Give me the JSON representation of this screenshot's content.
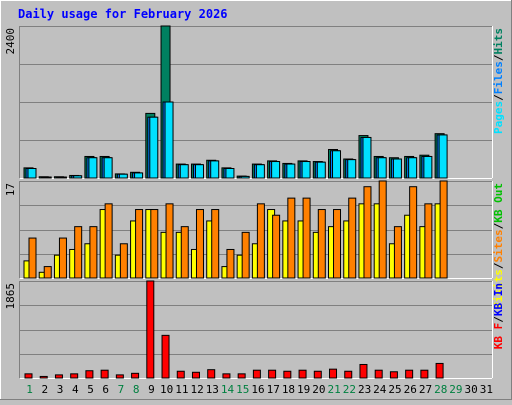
{
  "title": "Daily usage for February 2026",
  "colors": {
    "background": "#c0c0c0",
    "plot_bg": "#c0c0c0",
    "grid": "#808080",
    "pages": "#00e0ff",
    "files": "#0080ff",
    "hits": "#008060",
    "visits": "#ffff00",
    "sites": "#ff8000",
    "kbin": "#0000ff",
    "kbout": "#00c000",
    "kbf": "#ff0000",
    "weekday_label": "#000000",
    "weekend_label": "#008040"
  },
  "x_labels": [
    "1",
    "2",
    "3",
    "4",
    "5",
    "6",
    "7",
    "8",
    "9",
    "10",
    "11",
    "12",
    "13",
    "14",
    "15",
    "16",
    "17",
    "18",
    "19",
    "20",
    "21",
    "22",
    "23",
    "24",
    "25",
    "26",
    "27",
    "28",
    "29",
    "30",
    "31"
  ],
  "weekend_days": [
    1,
    7,
    8,
    14,
    15,
    21,
    22,
    28,
    29
  ],
  "chart_data": [
    {
      "type": "bar",
      "panel": "hits",
      "max_label": "2400",
      "ylim": [
        0,
        2400
      ],
      "grid": true,
      "legend_position": "right",
      "x": [
        1,
        2,
        3,
        4,
        5,
        6,
        7,
        8,
        9,
        10,
        11,
        12,
        13,
        14,
        15,
        16,
        17,
        18,
        19,
        20,
        21,
        22,
        23,
        24,
        25,
        26,
        27,
        28,
        29,
        30,
        31
      ],
      "series": [
        {
          "name": "Hits",
          "color_key": "hits",
          "values": [
            160,
            20,
            20,
            40,
            340,
            340,
            65,
            90,
            1020,
            2400,
            220,
            220,
            280,
            160,
            30,
            220,
            270,
            230,
            270,
            260,
            450,
            300,
            670,
            340,
            320,
            340,
            360,
            700,
            0,
            0,
            0
          ]
        },
        {
          "name": "Files",
          "color_key": "files",
          "values": [
            150,
            15,
            15,
            35,
            320,
            320,
            60,
            80,
            960,
            1200,
            210,
            210,
            270,
            150,
            25,
            210,
            260,
            220,
            260,
            250,
            430,
            290,
            640,
            320,
            300,
            320,
            340,
            680,
            0,
            0,
            0
          ]
        },
        {
          "name": "Pages",
          "color_key": "pages",
          "values": [
            150,
            15,
            15,
            35,
            320,
            320,
            60,
            80,
            960,
            1200,
            210,
            210,
            270,
            150,
            25,
            210,
            260,
            220,
            260,
            250,
            430,
            290,
            640,
            320,
            300,
            320,
            340,
            680,
            0,
            0,
            0
          ]
        }
      ],
      "legend": [
        "Pages",
        "/",
        "Files",
        "/",
        "Hits"
      ]
    },
    {
      "type": "bar",
      "panel": "visits",
      "max_label": "17",
      "ylim": [
        0,
        17
      ],
      "grid": true,
      "legend_position": "right",
      "x": [
        1,
        2,
        3,
        4,
        5,
        6,
        7,
        8,
        9,
        10,
        11,
        12,
        13,
        14,
        15,
        16,
        17,
        18,
        19,
        20,
        21,
        22,
        23,
        24,
        25,
        26,
        27,
        28,
        29,
        30,
        31
      ],
      "series": [
        {
          "name": "Visits",
          "color_key": "visits",
          "values": [
            3,
            1,
            4,
            5,
            6,
            12,
            4,
            10,
            12,
            8,
            8,
            5,
            10,
            2,
            4,
            6,
            12,
            10,
            10,
            8,
            9,
            10,
            13,
            13,
            6,
            11,
            9,
            13,
            0,
            0,
            0
          ]
        },
        {
          "name": "Sites",
          "color_key": "sites",
          "values": [
            7,
            2,
            7,
            9,
            9,
            13,
            6,
            12,
            12,
            13,
            9,
            12,
            12,
            5,
            8,
            13,
            11,
            14,
            14,
            12,
            12,
            14,
            16,
            17,
            9,
            16,
            13,
            17,
            0,
            0,
            0
          ]
        }
      ],
      "legend": [
        "Visits",
        "/",
        "Sites",
        "/",
        "KB Out"
      ]
    },
    {
      "type": "bar",
      "panel": "kbytes",
      "max_label": "1865",
      "ylim": [
        0,
        1865
      ],
      "grid": true,
      "legend_position": "right",
      "x": [
        1,
        2,
        3,
        4,
        5,
        6,
        7,
        8,
        9,
        10,
        11,
        12,
        13,
        14,
        15,
        16,
        17,
        18,
        19,
        20,
        21,
        22,
        23,
        24,
        25,
        26,
        27,
        28,
        29,
        30,
        31
      ],
      "series": [
        {
          "name": "KB F",
          "color_key": "kbf",
          "values": [
            80,
            30,
            60,
            80,
            140,
            150,
            60,
            90,
            1865,
            820,
            130,
            110,
            160,
            80,
            80,
            150,
            150,
            130,
            150,
            130,
            170,
            130,
            260,
            150,
            120,
            150,
            150,
            280,
            0,
            0,
            0
          ]
        }
      ],
      "legend": [
        "KB F",
        "/",
        "KB In"
      ]
    }
  ]
}
